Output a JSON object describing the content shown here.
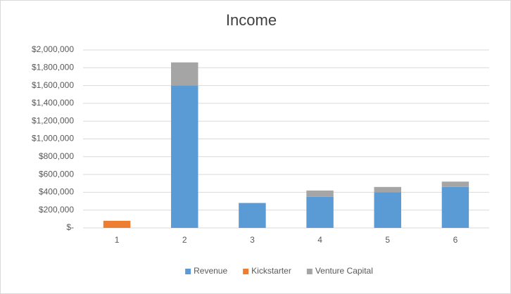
{
  "chart_data": {
    "type": "stacked_bar",
    "title": "Income",
    "categories": [
      "1",
      "2",
      "3",
      "4",
      "5",
      "6"
    ],
    "series": [
      {
        "name": "Revenue",
        "color": "#5b9bd5",
        "values": [
          0,
          1600000,
          280000,
          350000,
          400000,
          460000
        ]
      },
      {
        "name": "Kickstarter",
        "color": "#ed7d31",
        "values": [
          80000,
          0,
          0,
          0,
          0,
          0
        ]
      },
      {
        "name": "Venture Capital",
        "color": "#a5a5a5",
        "values": [
          0,
          260000,
          0,
          70000,
          60000,
          60000
        ]
      }
    ],
    "ylim": [
      0,
      2000000
    ],
    "yticks": [
      {
        "value": 0,
        "label": "$-"
      },
      {
        "value": 200000,
        "label": "$200,000"
      },
      {
        "value": 400000,
        "label": "$400,000"
      },
      {
        "value": 600000,
        "label": "$600,000"
      },
      {
        "value": 800000,
        "label": "$800,000"
      },
      {
        "value": 1000000,
        "label": "$1,000,000"
      },
      {
        "value": 1200000,
        "label": "$1,200,000"
      },
      {
        "value": 1400000,
        "label": "$1,400,000"
      },
      {
        "value": 1600000,
        "label": "$1,600,000"
      },
      {
        "value": 1800000,
        "label": "$1,800,000"
      },
      {
        "value": 2000000,
        "label": "$2,000,000"
      }
    ],
    "grid": true,
    "legend": "bottom"
  }
}
